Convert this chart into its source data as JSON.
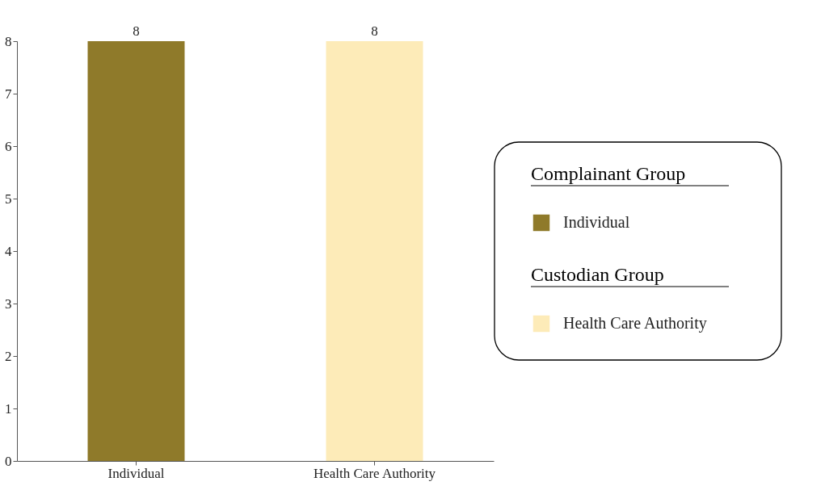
{
  "chart_data": {
    "type": "bar",
    "categories": [
      "Individual",
      "Health Care Authority"
    ],
    "series": [
      {
        "name": "Individual",
        "color": "#8f7a2a",
        "values": [
          8,
          null
        ]
      },
      {
        "name": "Health Care Authority",
        "color": "#fdebb8",
        "values": [
          null,
          8
        ]
      }
    ],
    "legend_title": [
      "Complainant Group",
      "Custodian Group"
    ],
    "ylim": [
      0,
      8
    ],
    "yticks": [
      0,
      1,
      2,
      3,
      4,
      5,
      6,
      7,
      8
    ],
    "grid": false,
    "data_labels": true,
    "legend": "right"
  }
}
